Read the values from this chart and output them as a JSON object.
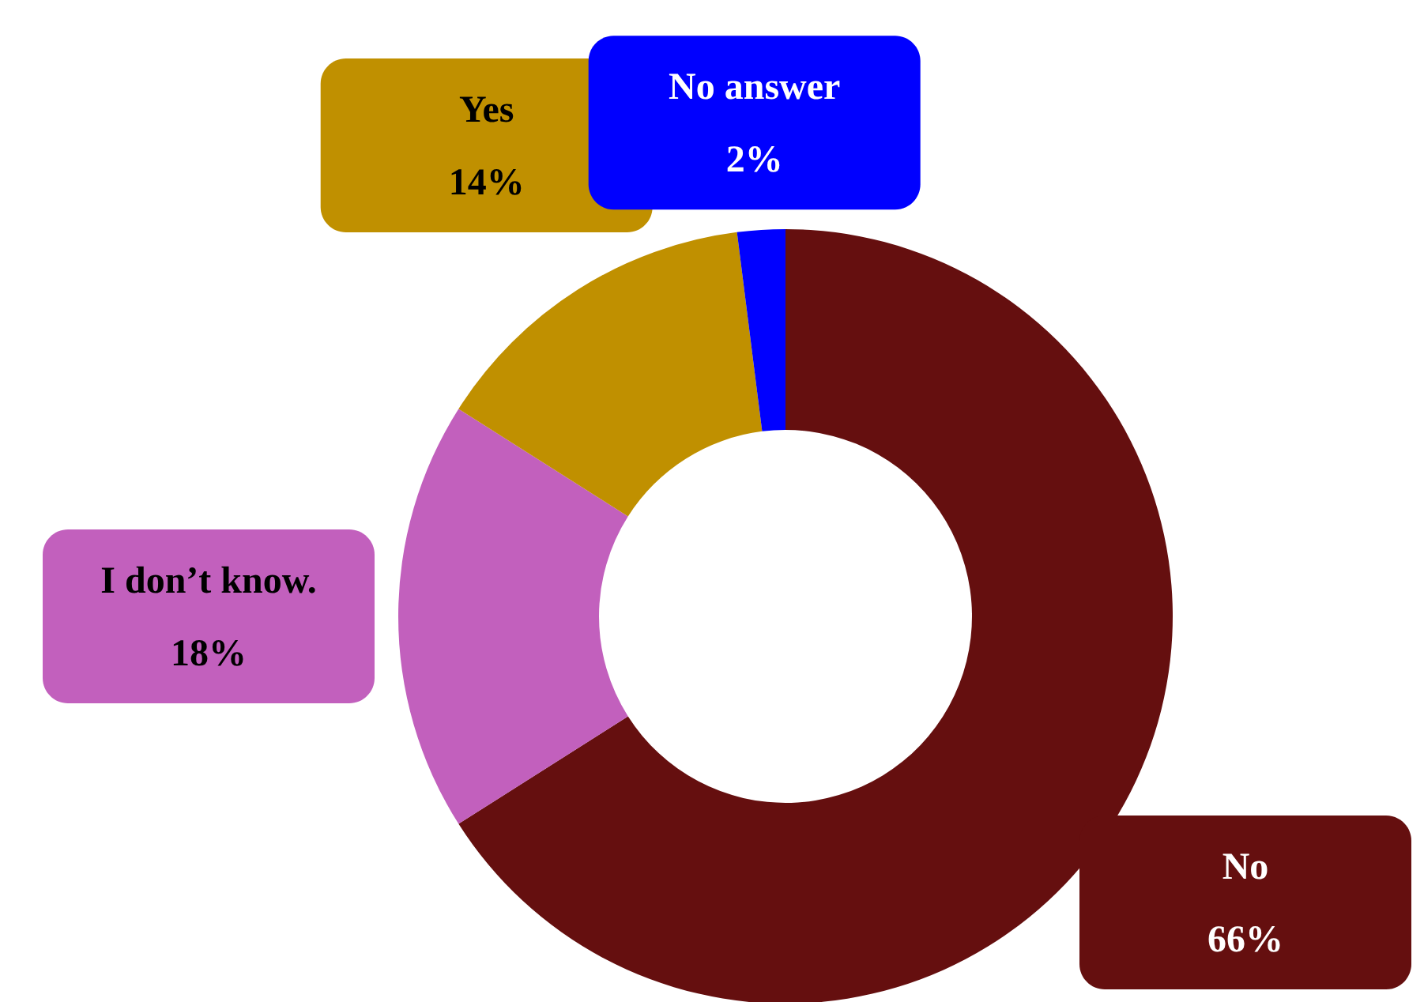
{
  "chart_data": {
    "type": "donut",
    "categories": [
      "No",
      "I don’t know.",
      "Yes",
      "No answer"
    ],
    "values": [
      66,
      18,
      14,
      2
    ],
    "colors": [
      "#650f0f",
      "#c260bd",
      "#c09000",
      "#0000ff"
    ],
    "value_labels": [
      "66%",
      "18%",
      "14%",
      "2%"
    ]
  }
}
